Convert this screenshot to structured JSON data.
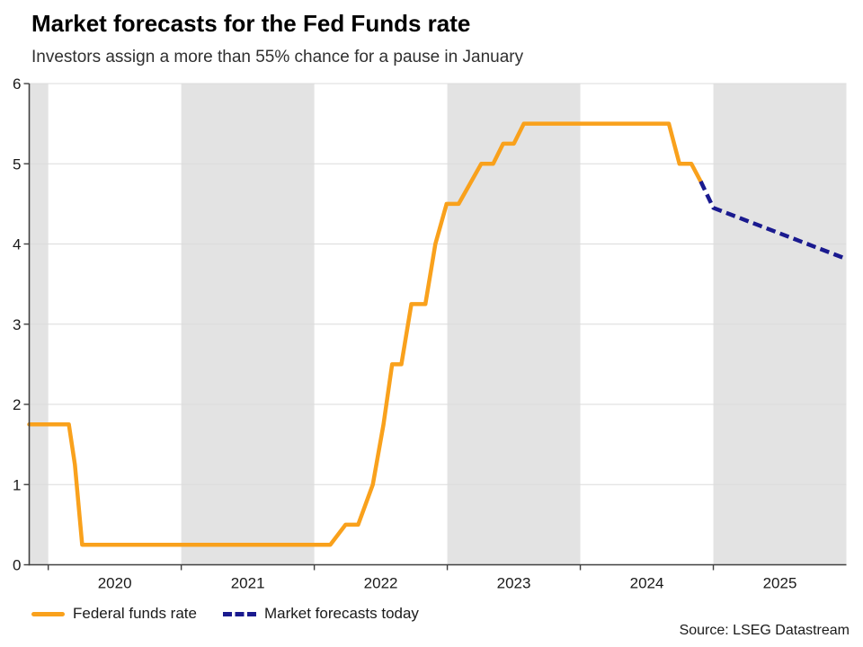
{
  "header": {
    "title": "Market forecasts for the Fed Funds rate",
    "subtitle": "Investors assign a more than 55% chance for a pause in January"
  },
  "source": "Source: LSEG Datastream",
  "legend": {
    "position": "bottom-left",
    "items": [
      {
        "label": "Federal funds rate",
        "style": "solid"
      },
      {
        "label": "Market forecasts today",
        "style": "dashed"
      }
    ]
  },
  "colors": {
    "background": "#ffffff",
    "shaded_band": "#e3e3e3",
    "gridline": "#dbdbdb",
    "axis": "#404040",
    "tick_label": "#1a1a1a",
    "federal_funds": "#f9a11c",
    "forecast": "#1a1a8f"
  },
  "chart_data": {
    "type": "line",
    "title": "Market forecasts for the Fed Funds rate",
    "subtitle": "Investors assign a more than 55% chance for a pause in January",
    "xlabel": "",
    "ylabel": "",
    "xlim": [
      2019.857,
      2026.0
    ],
    "ylim": [
      0,
      6
    ],
    "grid": "horizontal",
    "y_ticks": [
      0,
      1,
      2,
      3,
      4,
      5,
      6
    ],
    "x_tick_marks": [
      2020,
      2021,
      2022,
      2023,
      2024,
      2025
    ],
    "x_tick_labels": [
      {
        "t": 2020.5,
        "text": "2020"
      },
      {
        "t": 2021.5,
        "text": "2021"
      },
      {
        "t": 2022.5,
        "text": "2022"
      },
      {
        "t": 2023.5,
        "text": "2023"
      },
      {
        "t": 2024.5,
        "text": "2024"
      },
      {
        "t": 2025.5,
        "text": "2025"
      }
    ],
    "shaded_bands": [
      [
        2019.857,
        2020.0
      ],
      [
        2021.0,
        2022.0
      ],
      [
        2023.0,
        2024.0
      ],
      [
        2025.0,
        2026.0
      ]
    ],
    "series": [
      {
        "name": "Federal funds rate",
        "color": "#f9a11c",
        "dash": false,
        "points": [
          [
            2019.857,
            1.75
          ],
          [
            2020.155,
            1.75
          ],
          [
            2020.2,
            1.25
          ],
          [
            2020.255,
            0.25
          ],
          [
            2022.12,
            0.25
          ],
          [
            2022.235,
            0.5
          ],
          [
            2022.33,
            0.5
          ],
          [
            2022.44,
            1.0
          ],
          [
            2022.52,
            1.75
          ],
          [
            2022.585,
            2.5
          ],
          [
            2022.655,
            2.5
          ],
          [
            2022.73,
            3.25
          ],
          [
            2022.835,
            3.25
          ],
          [
            2022.91,
            4.0
          ],
          [
            2022.995,
            4.5
          ],
          [
            2023.085,
            4.5
          ],
          [
            2023.255,
            5.0
          ],
          [
            2023.345,
            5.0
          ],
          [
            2023.42,
            5.25
          ],
          [
            2023.5,
            5.25
          ],
          [
            2023.575,
            5.5
          ],
          [
            2024.665,
            5.5
          ],
          [
            2024.745,
            5.0
          ],
          [
            2024.835,
            5.0
          ],
          [
            2024.905,
            4.78
          ]
        ]
      },
      {
        "name": "Market forecasts today",
        "color": "#1a1a8f",
        "dash": true,
        "points": [
          [
            2024.905,
            4.78
          ],
          [
            2025.0,
            4.45
          ],
          [
            2025.99,
            3.82
          ]
        ]
      }
    ]
  }
}
